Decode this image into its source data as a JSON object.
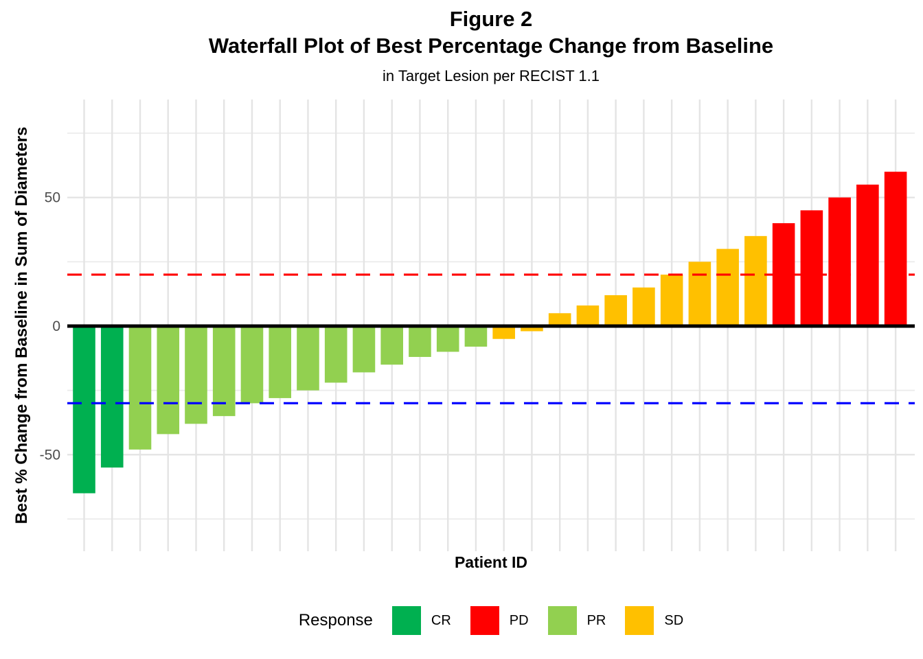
{
  "chart_data": {
    "type": "bar",
    "title": "Figure 2",
    "subtitle": "Waterfall Plot of Best Percentage Change from Baseline",
    "caption": "in Target Lesion per RECIST 1.1",
    "xlabel": "Patient ID",
    "ylabel": "Best % Change from Baseline in Sum of Diameters",
    "ylim": [
      -87.5,
      88
    ],
    "grid": true,
    "x_tick_labels_shown": false,
    "y_ticks": [
      {
        "value": 50,
        "label": "50"
      },
      {
        "value": 0,
        "label": "0"
      },
      {
        "value": -50,
        "label": "-50"
      }
    ],
    "y_major_gridlines": [
      -50,
      0,
      50
    ],
    "y_minor_gridlines": [
      -75,
      -25,
      25,
      75
    ],
    "legend_position": "bottom",
    "legend_title": "Response",
    "colors": {
      "CR": "#00B050",
      "PD": "#FF0000",
      "PR": "#92D050",
      "SD": "#FFC000"
    },
    "reference_lines": [
      {
        "value": 20,
        "color": "#FF0000",
        "style": "dashed"
      },
      {
        "value": -30,
        "color": "#0000FF",
        "style": "dashed"
      },
      {
        "value": 0,
        "color": "#000000",
        "style": "solid"
      }
    ],
    "bars": [
      {
        "value": -65,
        "response": "CR"
      },
      {
        "value": -55,
        "response": "CR"
      },
      {
        "value": -48,
        "response": "PR"
      },
      {
        "value": -42,
        "response": "PR"
      },
      {
        "value": -38,
        "response": "PR"
      },
      {
        "value": -35,
        "response": "PR"
      },
      {
        "value": -30,
        "response": "PR"
      },
      {
        "value": -28,
        "response": "PR"
      },
      {
        "value": -25,
        "response": "PR"
      },
      {
        "value": -22,
        "response": "PR"
      },
      {
        "value": -18,
        "response": "PR"
      },
      {
        "value": -15,
        "response": "PR"
      },
      {
        "value": -12,
        "response": "PR"
      },
      {
        "value": -10,
        "response": "PR"
      },
      {
        "value": -8,
        "response": "PR"
      },
      {
        "value": -5,
        "response": "SD"
      },
      {
        "value": -2,
        "response": "SD"
      },
      {
        "value": 5,
        "response": "SD"
      },
      {
        "value": 8,
        "response": "SD"
      },
      {
        "value": 12,
        "response": "SD"
      },
      {
        "value": 15,
        "response": "SD"
      },
      {
        "value": 20,
        "response": "SD"
      },
      {
        "value": 25,
        "response": "SD"
      },
      {
        "value": 30,
        "response": "SD"
      },
      {
        "value": 35,
        "response": "SD"
      },
      {
        "value": 40,
        "response": "PD"
      },
      {
        "value": 45,
        "response": "PD"
      },
      {
        "value": 50,
        "response": "PD"
      },
      {
        "value": 55,
        "response": "PD"
      },
      {
        "value": 60,
        "response": "PD"
      }
    ]
  },
  "legend": {
    "title": "Response",
    "items": [
      {
        "label": "CR",
        "color": "#00B050"
      },
      {
        "label": "PD",
        "color": "#FF0000"
      },
      {
        "label": "PR",
        "color": "#92D050"
      },
      {
        "label": "SD",
        "color": "#FFC000"
      }
    ]
  }
}
